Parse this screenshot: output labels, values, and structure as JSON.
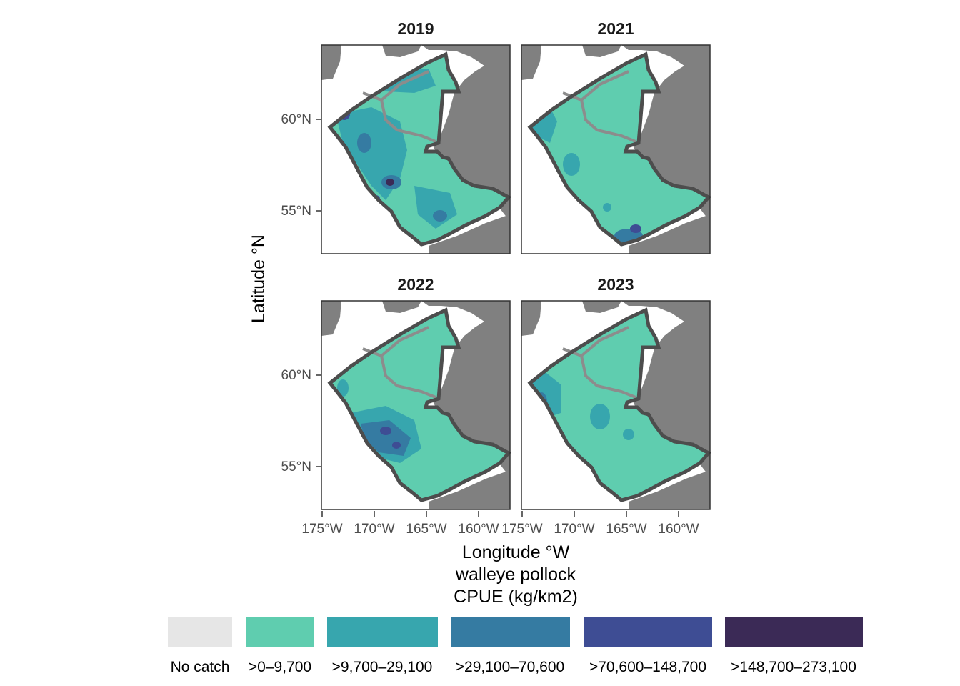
{
  "map": {
    "panels": [
      {
        "year": "2019"
      },
      {
        "year": "2021"
      },
      {
        "year": "2022"
      },
      {
        "year": "2023"
      }
    ],
    "x_axis": {
      "title": "Longitude °W",
      "ticks": [
        "175°W",
        "170°W",
        "165°W",
        "160°W"
      ]
    },
    "y_axis": {
      "title": "Latitude °N",
      "ticks": [
        "60°N",
        "55°N"
      ]
    },
    "legend": {
      "title_line1": "walleye pollock",
      "title_line2": "CPUE (kg/km2)",
      "items": [
        {
          "label": "No catch",
          "color": "#e6e6e6"
        },
        {
          "label": ">0–9,700",
          "color": "#5fcdaf"
        },
        {
          "label": ">9,700–29,100",
          "color": "#37a6ae"
        },
        {
          "label": ">29,100–70,600",
          "color": "#357ba2"
        },
        {
          "label": ">70,600–148,700",
          "color": "#3e4d94"
        },
        {
          "label": ">148,700–273,100",
          "color": "#3b2a56"
        }
      ]
    },
    "colors": {
      "land": "#808080",
      "survey_outline": "#4d4d4d",
      "stratum_line": "#8c8c8c",
      "panel_border": "#333333"
    }
  }
}
